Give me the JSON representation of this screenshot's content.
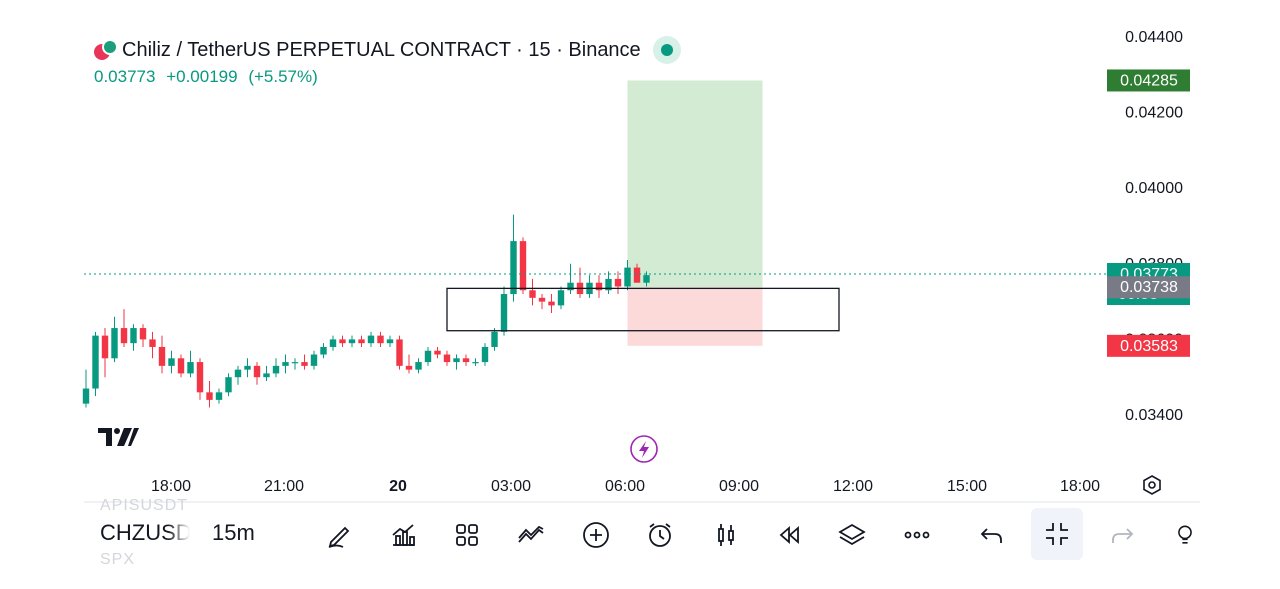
{
  "header": {
    "title": "Chiliz / TetherUS PERPETUAL CONTRACT · 15 · Binance",
    "last": "0.03773",
    "change": "+0.00199",
    "change_pct": "(+5.57%)"
  },
  "chart_data": {
    "type": "candlestick",
    "x_ticks": [
      "18:00",
      "21:00",
      "20",
      "03:00",
      "06:00",
      "09:00",
      "12:00",
      "15:00",
      "18:00"
    ],
    "y_ticks": [
      "0.04400",
      "0.04200",
      "0.04000",
      "0.03800",
      "0.03600",
      "0.03400"
    ],
    "ylim": [
      0.0325,
      0.0444
    ],
    "price_labels": [
      {
        "value": "0.04285",
        "color": "#2e7d32"
      },
      {
        "value": "0.03773",
        "sub": "00:53",
        "color": "#089981"
      },
      {
        "value": "0.03738",
        "color": "#787b86"
      },
      {
        "value": "0.03583",
        "color": "#f23645"
      }
    ],
    "last_price": 0.03773,
    "position": {
      "entry": 0.03738,
      "target": 0.04285,
      "stop": 0.03583,
      "start_index": 57,
      "end_index": 71
    },
    "zone_box": {
      "top": 0.03735,
      "bottom": 0.03623,
      "start_index": 38,
      "end_index": 78
    },
    "candles": [
      [
        0.0343,
        0.0352,
        0.0342,
        0.0347
      ],
      [
        0.0347,
        0.0362,
        0.0345,
        0.0361
      ],
      [
        0.0361,
        0.0363,
        0.035,
        0.0355
      ],
      [
        0.0355,
        0.0366,
        0.0354,
        0.0363
      ],
      [
        0.0363,
        0.0368,
        0.0358,
        0.0359
      ],
      [
        0.0359,
        0.0364,
        0.0357,
        0.0363
      ],
      [
        0.0363,
        0.0364,
        0.0358,
        0.036
      ],
      [
        0.036,
        0.0362,
        0.0355,
        0.0358
      ],
      [
        0.0358,
        0.0361,
        0.0351,
        0.0353
      ],
      [
        0.0353,
        0.0357,
        0.0351,
        0.0355
      ],
      [
        0.0355,
        0.0356,
        0.035,
        0.0351
      ],
      [
        0.0351,
        0.0357,
        0.035,
        0.0354
      ],
      [
        0.0354,
        0.0355,
        0.0344,
        0.0346
      ],
      [
        0.0346,
        0.0349,
        0.0342,
        0.0344
      ],
      [
        0.0344,
        0.0347,
        0.0343,
        0.0346
      ],
      [
        0.0346,
        0.0351,
        0.0345,
        0.035
      ],
      [
        0.035,
        0.0353,
        0.0348,
        0.0352
      ],
      [
        0.0352,
        0.0355,
        0.035,
        0.0353
      ],
      [
        0.0353,
        0.0354,
        0.0348,
        0.035
      ],
      [
        0.035,
        0.0353,
        0.0349,
        0.0351
      ],
      [
        0.0351,
        0.0355,
        0.035,
        0.0353
      ],
      [
        0.0353,
        0.0356,
        0.0351,
        0.0354
      ],
      [
        0.0354,
        0.0355,
        0.0352,
        0.0354
      ],
      [
        0.0354,
        0.0356,
        0.0352,
        0.0353
      ],
      [
        0.0353,
        0.0357,
        0.0352,
        0.0356
      ],
      [
        0.0356,
        0.0359,
        0.0355,
        0.0358
      ],
      [
        0.0358,
        0.0361,
        0.0357,
        0.036
      ],
      [
        0.036,
        0.0361,
        0.0358,
        0.0359
      ],
      [
        0.0359,
        0.0361,
        0.0358,
        0.036
      ],
      [
        0.036,
        0.0361,
        0.0358,
        0.0359
      ],
      [
        0.0359,
        0.0362,
        0.0358,
        0.0361
      ],
      [
        0.0361,
        0.0362,
        0.0358,
        0.0359
      ],
      [
        0.0359,
        0.0361,
        0.0358,
        0.036
      ],
      [
        0.036,
        0.0361,
        0.0352,
        0.0353
      ],
      [
        0.0353,
        0.0356,
        0.0351,
        0.0352
      ],
      [
        0.0352,
        0.0355,
        0.0351,
        0.0354
      ],
      [
        0.0354,
        0.0358,
        0.0353,
        0.0357
      ],
      [
        0.0357,
        0.0358,
        0.0355,
        0.0356
      ],
      [
        0.0356,
        0.0357,
        0.0353,
        0.0354
      ],
      [
        0.0354,
        0.0356,
        0.0352,
        0.0355
      ],
      [
        0.0355,
        0.0356,
        0.0353,
        0.0354
      ],
      [
        0.0354,
        0.0355,
        0.0353,
        0.0354
      ],
      [
        0.0354,
        0.0359,
        0.0353,
        0.0358
      ],
      [
        0.0358,
        0.0363,
        0.0357,
        0.0362
      ],
      [
        0.0362,
        0.0374,
        0.0361,
        0.0372
      ],
      [
        0.0372,
        0.0393,
        0.037,
        0.0386
      ],
      [
        0.0386,
        0.0387,
        0.0372,
        0.0373
      ],
      [
        0.0373,
        0.0376,
        0.0369,
        0.0371
      ],
      [
        0.0371,
        0.0372,
        0.0368,
        0.037
      ],
      [
        0.037,
        0.0372,
        0.0367,
        0.0369
      ],
      [
        0.0369,
        0.0374,
        0.0368,
        0.0373
      ],
      [
        0.0373,
        0.038,
        0.0372,
        0.0375
      ],
      [
        0.0375,
        0.0379,
        0.0371,
        0.0372
      ],
      [
        0.0372,
        0.0377,
        0.0371,
        0.0375
      ],
      [
        0.0375,
        0.0377,
        0.0371,
        0.0373
      ],
      [
        0.0373,
        0.0378,
        0.0372,
        0.0376
      ],
      [
        0.0376,
        0.0378,
        0.0372,
        0.0374
      ],
      [
        0.0374,
        0.0381,
        0.0373,
        0.0379
      ],
      [
        0.0379,
        0.038,
        0.0375,
        0.0375
      ],
      [
        0.0375,
        0.0378,
        0.0374,
        0.0377
      ]
    ]
  },
  "toolbar": {
    "symbol": "CHZUSDT",
    "symbol_above": "APISUSDT",
    "symbol_below": "SPX",
    "interval": "15m",
    "tools": [
      "draw-icon",
      "indicators-icon",
      "layouts-icon",
      "compare-icon",
      "add-icon",
      "alert-icon",
      "candles-icon",
      "replay-icon",
      "layers-icon",
      "more-icon",
      "undo-icon",
      "collapse-icon",
      "redo-icon",
      "bulb-icon"
    ]
  },
  "colors": {
    "up": "#089981",
    "down": "#f23645",
    "tp_fill": "#d3ead3",
    "sl_fill": "#fddada"
  }
}
